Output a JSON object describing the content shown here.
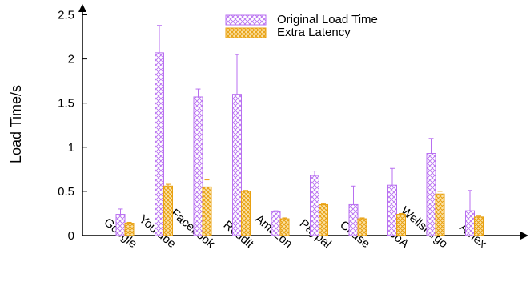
{
  "chart_data": {
    "type": "bar",
    "title": "",
    "xlabel": "",
    "ylabel": "Load Time/s",
    "ylim": [
      0,
      2.5
    ],
    "yticks": [
      {
        "value": 0,
        "label": "0"
      },
      {
        "value": 0.5,
        "label": "0.5"
      },
      {
        "value": 1,
        "label": "1"
      },
      {
        "value": 1.5,
        "label": "1.5"
      },
      {
        "value": 2,
        "label": "2"
      },
      {
        "value": 2.5,
        "label": "2.5"
      }
    ],
    "categories": [
      "Google",
      "Youtube",
      "Facebook",
      "Reddit",
      "Amazon",
      "Paypal",
      "Chase",
      "BoA",
      "Wellsfargo",
      "Amex"
    ],
    "series": [
      {
        "name": "Original Load Time",
        "color": "#b86ff0",
        "pattern": "crosshatch",
        "values": [
          0.24,
          2.07,
          1.57,
          1.6,
          0.27,
          0.68,
          0.35,
          0.57,
          0.93,
          0.28
        ],
        "error_upper": [
          0.3,
          2.38,
          1.66,
          2.05,
          0.28,
          0.73,
          0.56,
          0.76,
          1.1,
          0.51
        ]
      },
      {
        "name": "Extra Latency",
        "color": "#f0a820",
        "pattern": "crosshatch",
        "values": [
          0.14,
          0.56,
          0.55,
          0.5,
          0.19,
          0.35,
          0.19,
          0.24,
          0.47,
          0.21
        ],
        "error_upper": [
          0.15,
          0.58,
          0.63,
          0.51,
          0.2,
          0.36,
          0.2,
          0.25,
          0.5,
          0.22
        ]
      }
    ],
    "legend_position": "top-right",
    "grid": false
  }
}
